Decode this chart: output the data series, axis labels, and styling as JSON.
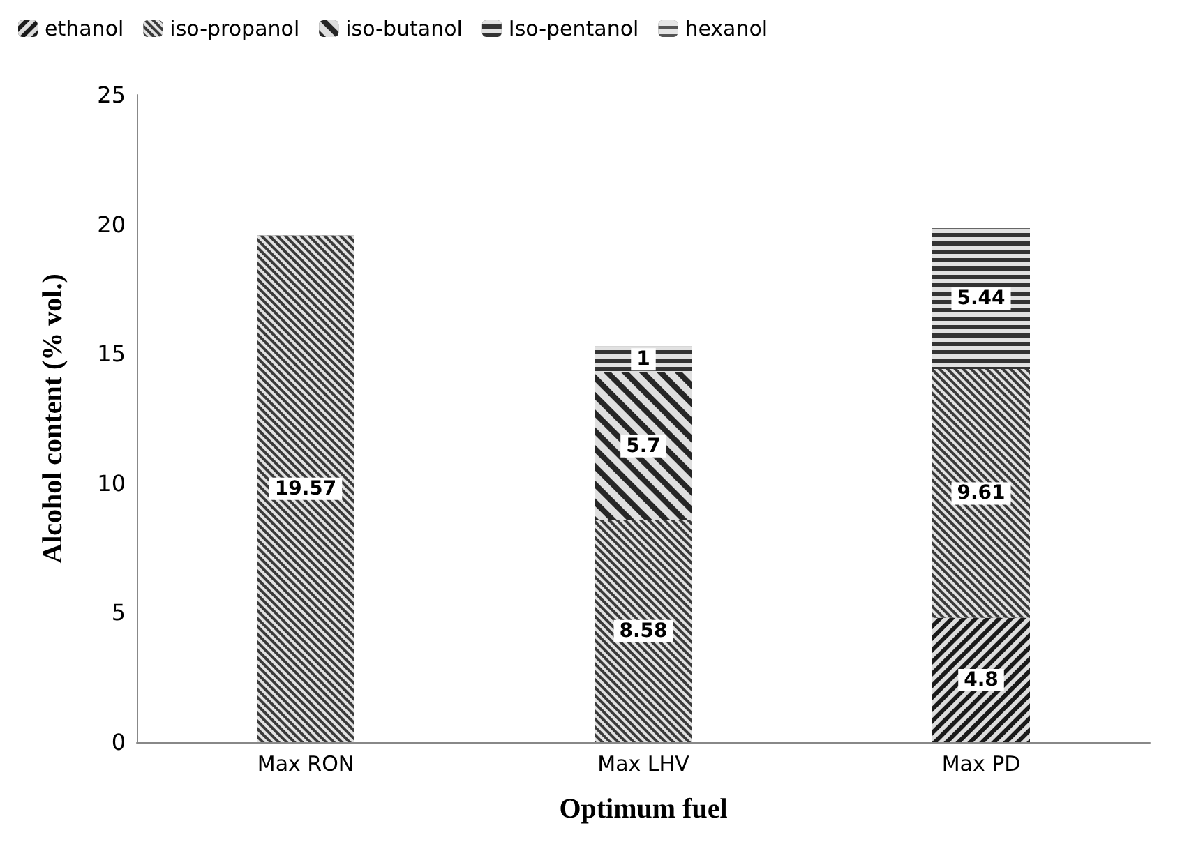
{
  "chart_data": {
    "type": "bar",
    "stacked": true,
    "xlabel": "Optimum fuel",
    "ylabel": "Alcohol content (% vol.)",
    "categories": [
      "Max RON",
      "Max LHV",
      "Max PD"
    ],
    "series": [
      {
        "name": "ethanol",
        "color": "#1a1a1a",
        "values": [
          null,
          null,
          4.8
        ]
      },
      {
        "name": "iso-propanol",
        "color": "#3a3a3a",
        "values": [
          19.57,
          8.58,
          9.61
        ]
      },
      {
        "name": "iso-butanol",
        "color": "#262626",
        "values": [
          null,
          5.7,
          null
        ]
      },
      {
        "name": "Iso-pentanol",
        "color": "#333333",
        "values": [
          null,
          1,
          5.44
        ]
      },
      {
        "name": "hexanol",
        "color": "#555555",
        "values": [
          null,
          null,
          null
        ]
      }
    ],
    "ylim": [
      0,
      25
    ],
    "yticks": [
      0,
      5,
      10,
      15,
      20,
      25
    ],
    "grid": false,
    "legend": "top",
    "data_labels": true
  }
}
